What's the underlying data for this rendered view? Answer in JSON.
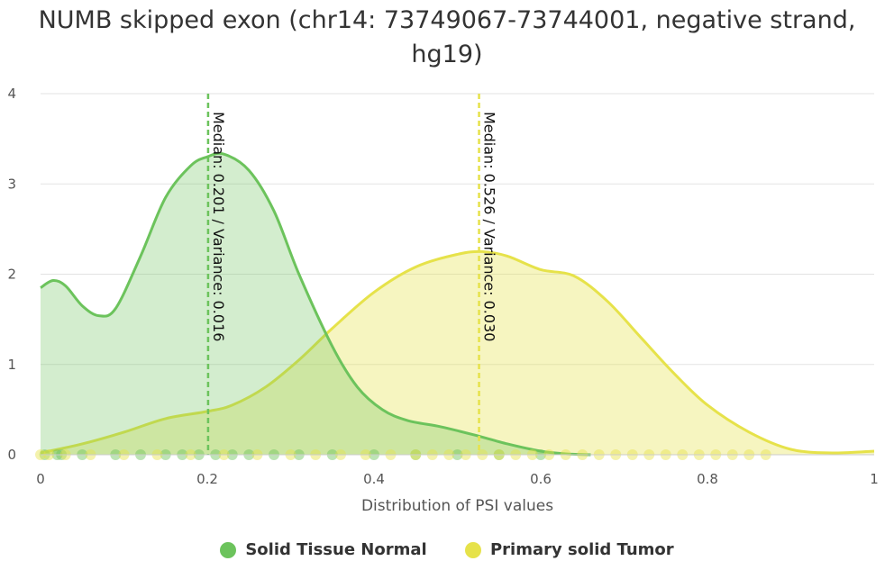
{
  "title": "NUMB skipped exon (chr14: 73749067-73744001, negative strand, hg19)",
  "chart_data": {
    "type": "area",
    "title": "NUMB skipped exon (chr14: 73749067-73744001, negative strand, hg19)",
    "xlabel": "Distribution of PSI values",
    "ylabel": "",
    "xlim": [
      0,
      1
    ],
    "ylim": [
      0,
      4
    ],
    "xticks": [
      "0",
      "0.2",
      "0.4",
      "0.6",
      "0.8",
      "1"
    ],
    "yticks": [
      "0",
      "1",
      "2",
      "3",
      "4"
    ],
    "grid": true,
    "legend_position": "bottom",
    "series": [
      {
        "name": "Solid Tissue Normal",
        "color": "#6cc35c",
        "x": [
          0,
          0.015,
          0.03,
          0.05,
          0.07,
          0.09,
          0.12,
          0.15,
          0.18,
          0.2,
          0.22,
          0.25,
          0.28,
          0.31,
          0.35,
          0.38,
          0.41,
          0.44,
          0.48,
          0.52,
          0.56,
          0.6,
          0.63,
          0.66
        ],
        "y": [
          1.85,
          1.93,
          1.87,
          1.65,
          1.54,
          1.62,
          2.2,
          2.85,
          3.2,
          3.3,
          3.33,
          3.15,
          2.7,
          2.0,
          1.2,
          0.75,
          0.5,
          0.38,
          0.31,
          0.22,
          0.12,
          0.04,
          0.01,
          0
        ],
        "median": 0.201,
        "median_label": "Median: 0.201 / Variance: 0.016"
      },
      {
        "name": "Primary solid Tumor",
        "color": "#e6e24a",
        "x": [
          0,
          0.05,
          0.1,
          0.15,
          0.2,
          0.23,
          0.27,
          0.31,
          0.35,
          0.4,
          0.45,
          0.5,
          0.53,
          0.56,
          0.6,
          0.64,
          0.68,
          0.72,
          0.76,
          0.8,
          0.85,
          0.9,
          0.95,
          1.0
        ],
        "y": [
          0.02,
          0.12,
          0.25,
          0.4,
          0.48,
          0.55,
          0.75,
          1.05,
          1.4,
          1.8,
          2.08,
          2.22,
          2.25,
          2.2,
          2.05,
          1.98,
          1.7,
          1.3,
          0.9,
          0.55,
          0.25,
          0.06,
          0.02,
          0.04
        ],
        "median": 0.526,
        "median_label": "Median: 0.526 / Variance: 0.030"
      }
    ],
    "rug_points": {
      "normal": [
        0.005,
        0.02,
        0.025,
        0.05,
        0.09,
        0.12,
        0.15,
        0.17,
        0.19,
        0.21,
        0.23,
        0.25,
        0.28,
        0.31,
        0.35,
        0.4,
        0.45,
        0.5,
        0.55,
        0.6
      ],
      "tumor": [
        0,
        0.01,
        0.03,
        0.06,
        0.1,
        0.14,
        0.18,
        0.22,
        0.26,
        0.3,
        0.33,
        0.36,
        0.39,
        0.42,
        0.45,
        0.47,
        0.49,
        0.51,
        0.53,
        0.55,
        0.57,
        0.59,
        0.61,
        0.63,
        0.65,
        0.67,
        0.69,
        0.71,
        0.73,
        0.75,
        0.77,
        0.79,
        0.81,
        0.83,
        0.85,
        0.87
      ]
    }
  },
  "legend": {
    "normal_label": "Solid Tissue Normal",
    "tumor_label": "Primary solid Tumor",
    "normal_color": "#6cc35c",
    "tumor_color": "#e6e24a"
  }
}
